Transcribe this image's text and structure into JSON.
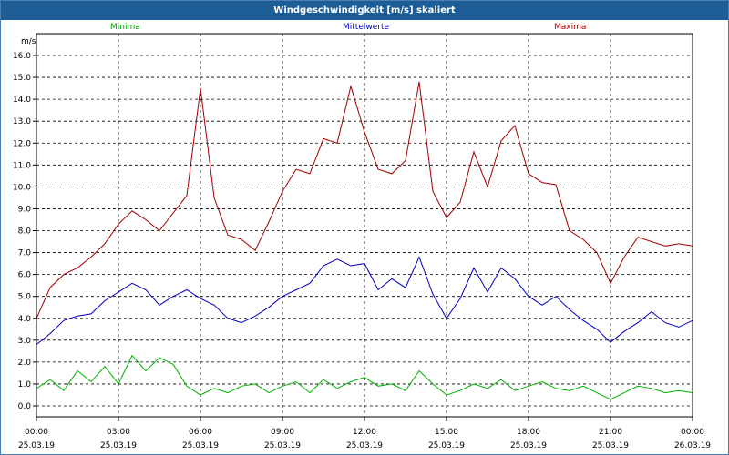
{
  "window": {
    "title": "Windgeschwindigkeit [m/s] skaliert"
  },
  "legend": {
    "min": "Minima",
    "mid": "Mittelwerte",
    "max": "Maxima"
  },
  "colors": {
    "min": "#00b000",
    "mid": "#0000c0",
    "max": "#a00000",
    "titlebar": "#1c5d96"
  },
  "chart_data": {
    "type": "line",
    "title": "Windgeschwindigkeit [m/s] skaliert",
    "ylabel": "m/s",
    "ylim": [
      0,
      16.5
    ],
    "yticks": [
      "0.0",
      "1.0",
      "2.0",
      "3.0",
      "4.0",
      "5.0",
      "6.0",
      "7.0",
      "8.0",
      "9.0",
      "10.0",
      "11.0",
      "12.0",
      "13.0",
      "14.0",
      "15.0",
      "16.0"
    ],
    "xticks": [
      {
        "time": "00:00",
        "date": "25.03.19"
      },
      {
        "time": "03:00",
        "date": "25.03.19"
      },
      {
        "time": "06:00",
        "date": "25.03.19"
      },
      {
        "time": "09:00",
        "date": "25.03.19"
      },
      {
        "time": "12:00",
        "date": "25.03.19"
      },
      {
        "time": "15:00",
        "date": "25.03.19"
      },
      {
        "time": "18:00",
        "date": "25.03.19"
      },
      {
        "time": "21:00",
        "date": "25.03.19"
      },
      {
        "time": "00:00",
        "date": "26.03.19"
      }
    ],
    "x_hours": [
      0,
      0.5,
      1,
      1.5,
      2,
      2.5,
      3,
      3.5,
      4,
      4.5,
      5,
      5.5,
      6,
      6.5,
      7,
      7.5,
      8,
      8.5,
      9,
      9.5,
      10,
      10.5,
      11,
      11.5,
      12,
      12.5,
      13,
      13.5,
      14,
      14.5,
      15,
      15.5,
      16,
      16.5,
      17,
      17.5,
      18,
      18.5,
      19,
      19.5,
      20,
      20.5,
      21,
      21.5,
      22,
      22.5,
      23,
      23.5,
      24
    ],
    "series": [
      {
        "name": "Minima",
        "color": "#00b000",
        "values": [
          0.8,
          1.2,
          0.7,
          1.6,
          1.1,
          1.8,
          1.0,
          2.3,
          1.6,
          2.2,
          1.9,
          0.9,
          0.5,
          0.8,
          0.6,
          0.9,
          1.0,
          0.6,
          0.9,
          1.1,
          0.6,
          1.2,
          0.8,
          1.1,
          1.3,
          0.9,
          1.0,
          0.7,
          1.6,
          1.0,
          0.5,
          0.7,
          1.0,
          0.8,
          1.2,
          0.7,
          0.9,
          1.1,
          0.8,
          0.7,
          0.9,
          0.6,
          0.3,
          0.6,
          0.9,
          0.8,
          0.6,
          0.7,
          0.6
        ]
      },
      {
        "name": "Mittelwerte",
        "color": "#0000c0",
        "values": [
          2.8,
          3.3,
          3.9,
          4.1,
          4.2,
          4.8,
          5.2,
          5.6,
          5.3,
          4.6,
          5.0,
          5.3,
          4.9,
          4.6,
          4.0,
          3.8,
          4.1,
          4.5,
          5.0,
          5.3,
          5.6,
          6.4,
          6.7,
          6.4,
          6.5,
          5.3,
          5.8,
          5.4,
          6.8,
          5.1,
          4.0,
          4.9,
          6.3,
          5.2,
          6.3,
          5.8,
          5.0,
          4.6,
          5.0,
          4.4,
          3.9,
          3.5,
          2.9,
          3.4,
          3.8,
          4.3,
          3.8,
          3.6,
          3.9
        ]
      },
      {
        "name": "Maxima",
        "color": "#a00000",
        "values": [
          4.0,
          5.4,
          6.0,
          6.3,
          6.8,
          7.4,
          8.3,
          8.9,
          8.5,
          8.0,
          8.8,
          9.6,
          14.5,
          9.5,
          7.8,
          7.6,
          7.1,
          8.4,
          9.8,
          10.8,
          10.6,
          12.2,
          12.0,
          14.6,
          12.5,
          10.8,
          10.6,
          11.2,
          14.8,
          9.8,
          8.6,
          9.3,
          11.6,
          10.0,
          12.1,
          12.8,
          10.6,
          10.2,
          10.1,
          8.0,
          7.6,
          7.0,
          5.6,
          6.8,
          7.7,
          7.5,
          7.3,
          7.4,
          7.3
        ]
      }
    ]
  }
}
